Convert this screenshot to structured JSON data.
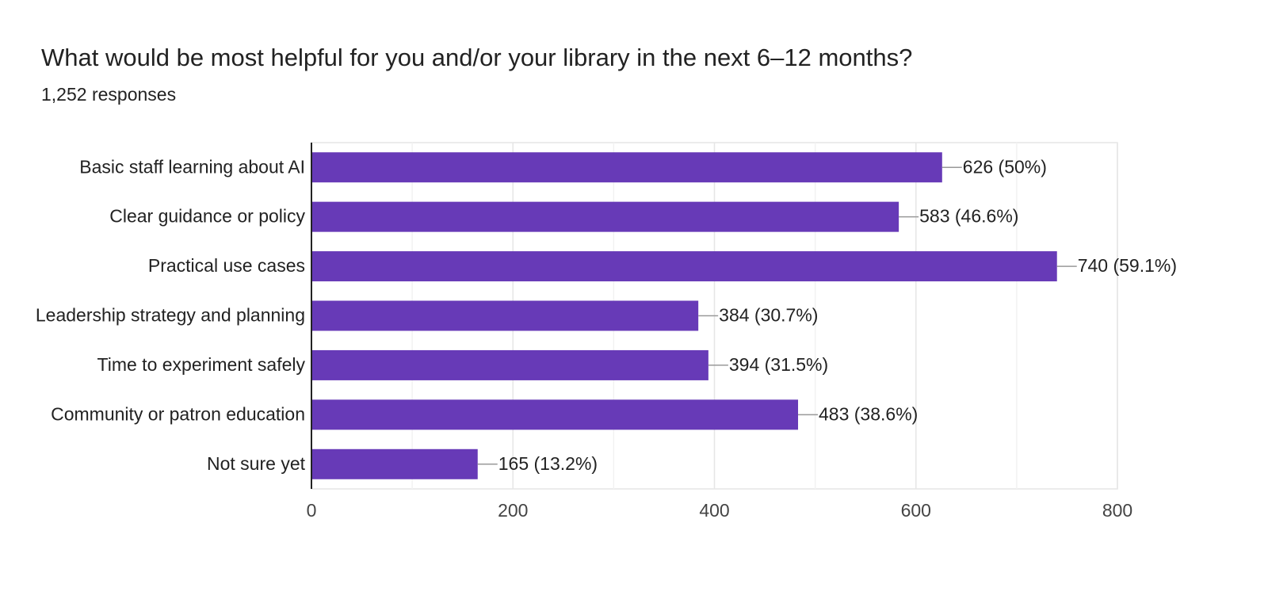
{
  "chart_data": {
    "type": "hbar",
    "title": "What would be most helpful for you and/or your library in the next 6–12 months?",
    "subtitle": "1,252 responses",
    "categories": [
      "Basic staff learning about AI",
      "Clear guidance or policy",
      "Practical use cases",
      "Leadership strategy and planning",
      "Time to experiment safely",
      "Community or patron education",
      "Not sure yet"
    ],
    "values": [
      626,
      583,
      740,
      384,
      394,
      483,
      165
    ],
    "value_labels": [
      "626 (50%)",
      "583 (46.6%)",
      "740 (59.1%)",
      "384 (30.7%)",
      "394 (31.5%)",
      "483 (38.6%)",
      "165 (13.2%)"
    ],
    "color": "#673ab7",
    "xlim": [
      0,
      800
    ],
    "xticks": [
      0,
      200,
      400,
      600,
      800
    ],
    "x_minor_gridlines": [
      100,
      300,
      500,
      700
    ],
    "grid": true
  }
}
